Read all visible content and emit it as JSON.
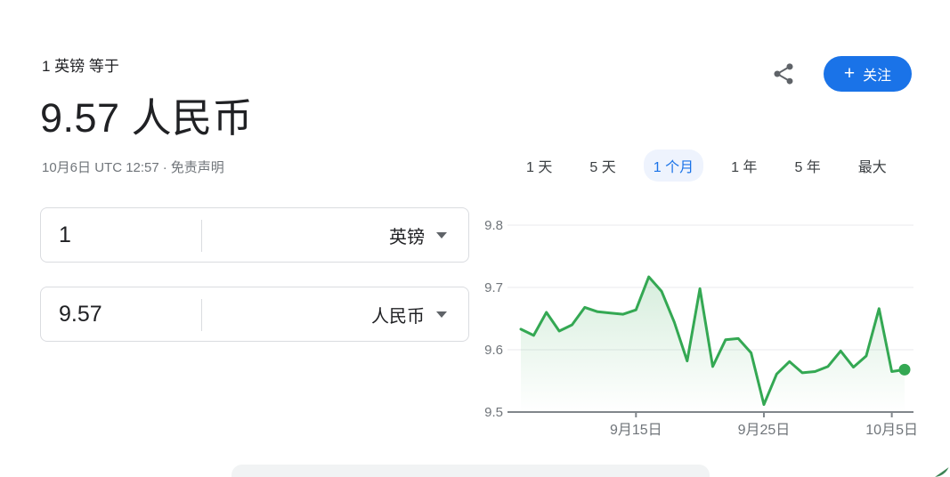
{
  "header": {
    "subtitle": "1 英镑 等于",
    "result": "9.57 人民币",
    "meta_time": "10月6日 UTC 12:57",
    "meta_separator": "·",
    "disclaimer": "免责声明"
  },
  "actions": {
    "share_icon": "share-icon",
    "follow_plus": "+",
    "follow_label": "关注"
  },
  "converter": {
    "rows": [
      {
        "amount": "1",
        "currency": "英镑"
      },
      {
        "amount": "9.57",
        "currency": "人民币"
      }
    ],
    "dropdown_icon": "caret-down"
  },
  "tabs": {
    "items": [
      {
        "label": "1 天",
        "active": false
      },
      {
        "label": "5 天",
        "active": false
      },
      {
        "label": "1 个月",
        "active": true
      },
      {
        "label": "1 年",
        "active": false
      },
      {
        "label": "5 年",
        "active": false
      },
      {
        "label": "最大",
        "active": false
      }
    ]
  },
  "chart_data": {
    "type": "line",
    "values": [
      9.633,
      9.623,
      9.66,
      9.63,
      9.64,
      9.668,
      9.661,
      9.659,
      9.657,
      9.664,
      9.717,
      9.694,
      9.644,
      9.582,
      9.698,
      9.573,
      9.616,
      9.618,
      9.595,
      9.512,
      9.561,
      9.581,
      9.563,
      9.565,
      9.573,
      9.598,
      9.572,
      9.59,
      9.666,
      9.565,
      9.568
    ],
    "ylim": [
      9.5,
      9.8
    ],
    "y_ticks": [
      9.5,
      9.6,
      9.7,
      9.8
    ],
    "x_ticks": [
      {
        "index": 9,
        "label": "9月15日"
      },
      {
        "index": 19,
        "label": "9月25日"
      },
      {
        "index": 29,
        "label": "10月5日"
      }
    ],
    "grid": true,
    "area_fill": true,
    "end_dot": true,
    "line_color": "#34a853",
    "axis_color": "#80868b",
    "grid_color": "#e8eaed",
    "label_color": "#70757a",
    "legend": "none",
    "title": ""
  },
  "colors": {
    "accent_blue": "#1a73e8",
    "active_tab_bg": "#eef3fd",
    "line_green": "#34a853",
    "text_dark": "#202124",
    "text_gray": "#70757a"
  }
}
